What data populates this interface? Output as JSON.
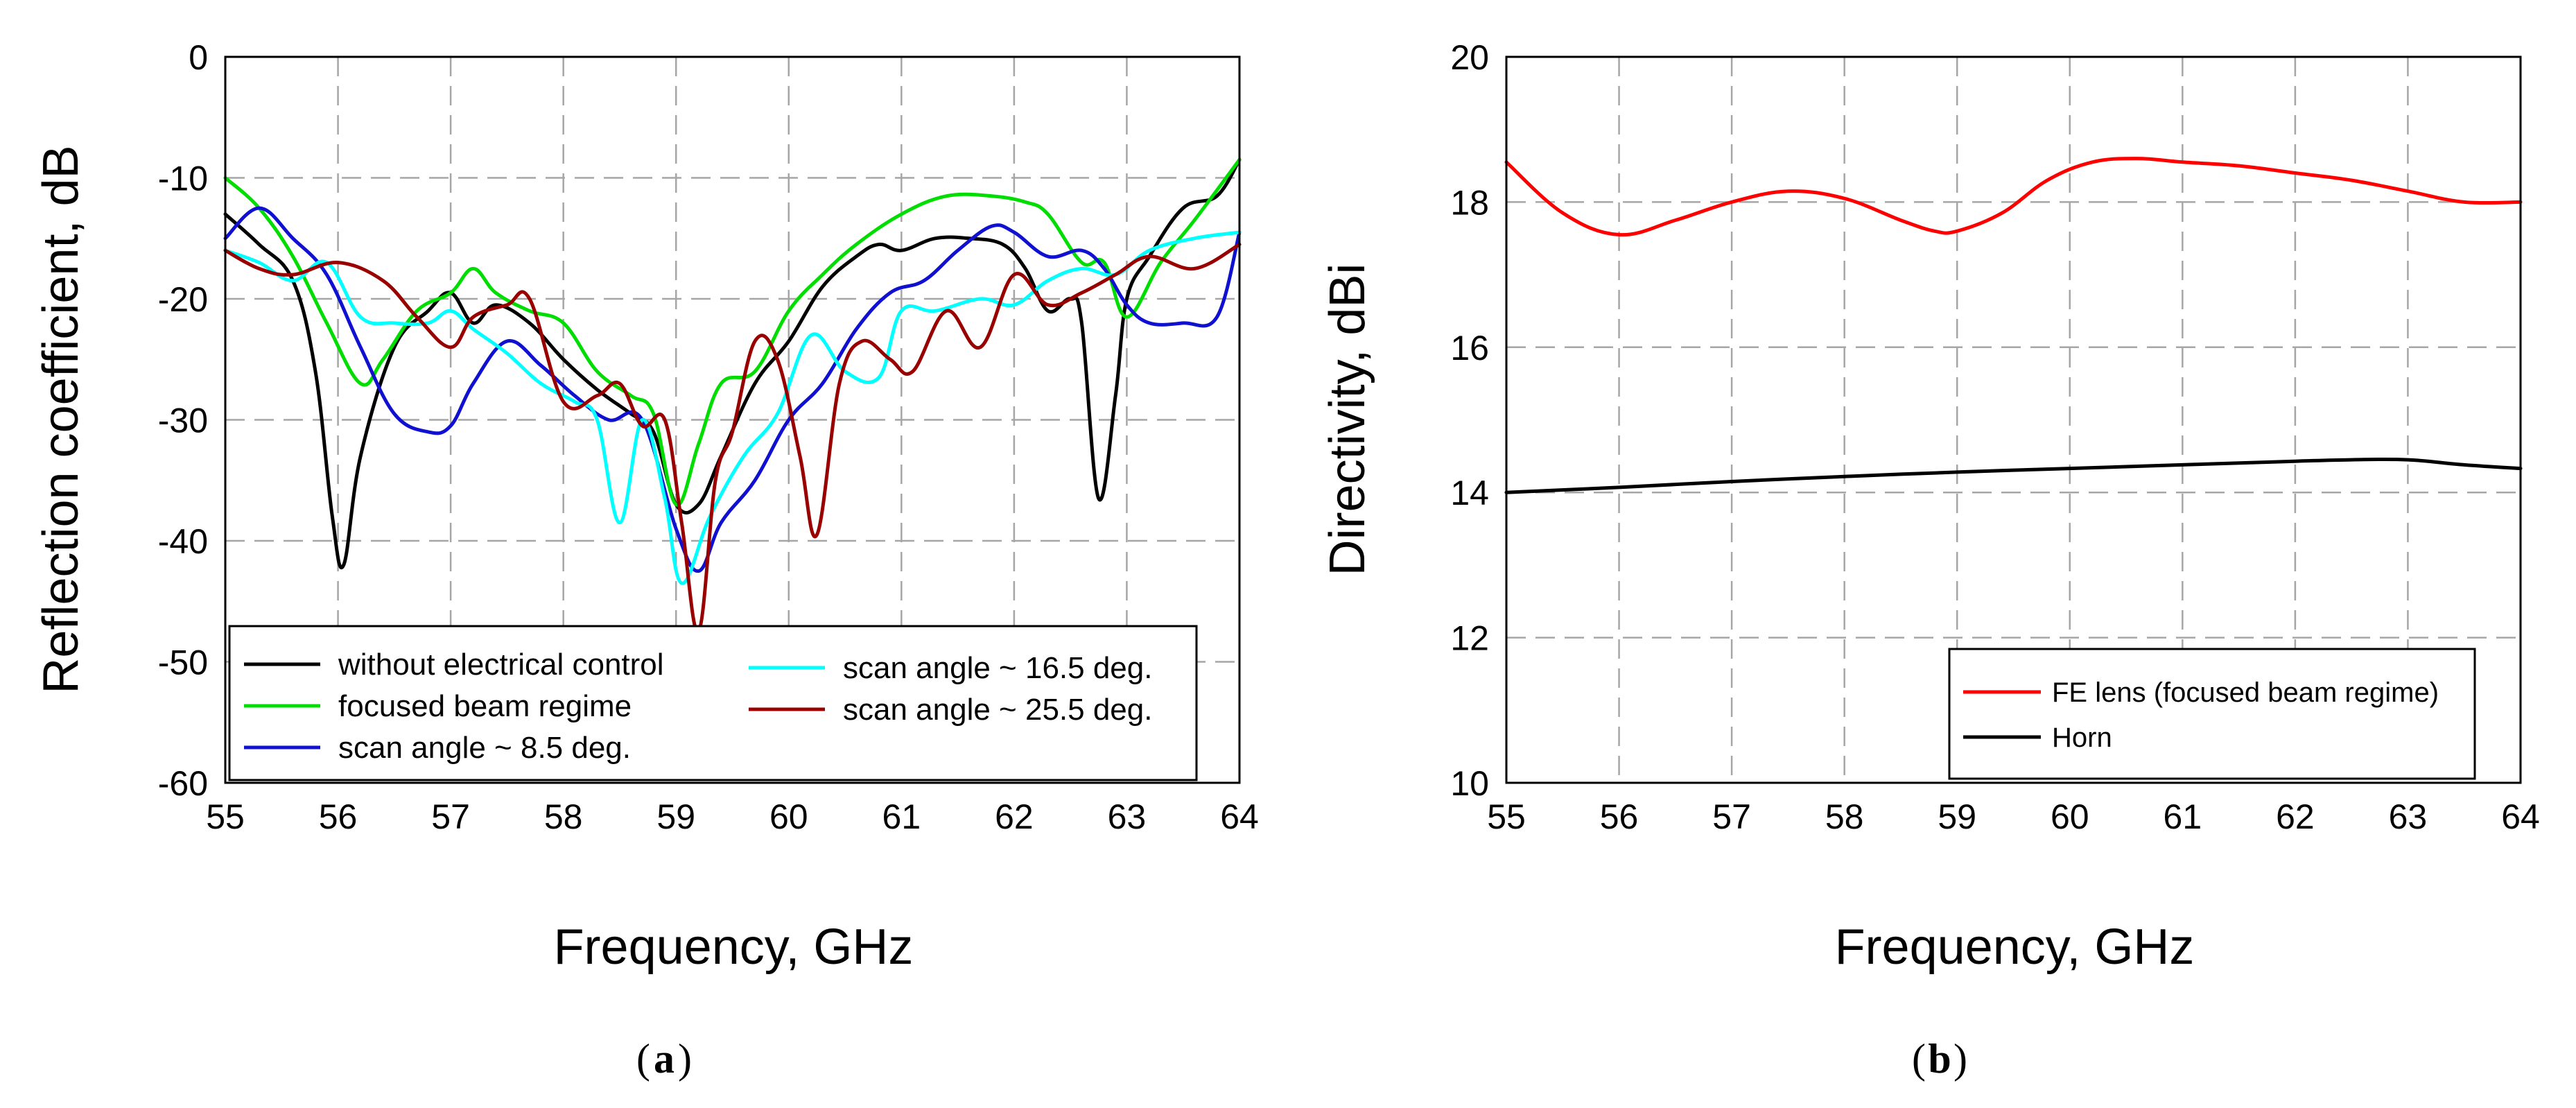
{
  "chart_data": [
    {
      "type": "line",
      "panel_label": "(a)",
      "panel_letter": "a",
      "xlabel": "Frequency, GHz",
      "ylabel": "Reflection coefficient, dB",
      "xlim": [
        55,
        64
      ],
      "ylim": [
        -60,
        0
      ],
      "x_ticks": [
        "55",
        "56",
        "57",
        "58",
        "59",
        "60",
        "61",
        "62",
        "63",
        "64"
      ],
      "y_ticks": [
        "0",
        "-10",
        "-20",
        "-30",
        "-40",
        "-50",
        "-60"
      ],
      "grid": true,
      "legend_position": "bottom-left",
      "series": [
        {
          "name": "without electrical control",
          "color": "#000000",
          "x": [
            55,
            55.3,
            55.6,
            55.8,
            55.95,
            56.05,
            56.2,
            56.5,
            56.8,
            57.0,
            57.2,
            57.4,
            57.7,
            58.0,
            58.3,
            58.6,
            58.8,
            59.0,
            59.2,
            59.4,
            59.7,
            60.0,
            60.3,
            60.6,
            60.8,
            61.0,
            61.3,
            61.6,
            61.9,
            62.1,
            62.3,
            62.5,
            62.6,
            62.75,
            62.9,
            63.0,
            63.2,
            63.5,
            63.8,
            64.0
          ],
          "values": [
            -13,
            -15.5,
            -18.5,
            -26,
            -38,
            -42,
            -33,
            -24,
            -21,
            -19.5,
            -22,
            -20.5,
            -22,
            -25,
            -27.5,
            -29.5,
            -31,
            -37,
            -37,
            -33,
            -27,
            -23.5,
            -19,
            -16.5,
            -15.5,
            -16,
            -15,
            -15,
            -15.5,
            -17.5,
            -21,
            -20,
            -22,
            -36.5,
            -28,
            -20,
            -16.5,
            -12.5,
            -11.5,
            -8.5
          ]
        },
        {
          "name": "focused beam regime",
          "color": "#00dd00",
          "x": [
            55,
            55.3,
            55.6,
            55.9,
            56.2,
            56.4,
            56.7,
            57.0,
            57.2,
            57.4,
            57.7,
            58.0,
            58.3,
            58.6,
            58.8,
            59.0,
            59.2,
            59.4,
            59.7,
            60.0,
            60.3,
            60.6,
            61.0,
            61.4,
            61.8,
            62.1,
            62.3,
            62.6,
            62.8,
            63.0,
            63.3,
            63.6,
            64.0
          ],
          "values": [
            -10,
            -12.5,
            -16.5,
            -22,
            -27,
            -25,
            -21,
            -19.5,
            -17.5,
            -19.5,
            -21,
            -22,
            -26,
            -28,
            -29.5,
            -37,
            -32,
            -27,
            -26,
            -21,
            -18,
            -15.5,
            -13,
            -11.5,
            -11.5,
            -12,
            -13,
            -17,
            -17,
            -21.5,
            -17,
            -13.5,
            -8.5
          ]
        },
        {
          "name": "scan angle ~ 8.5 deg.",
          "color": "#1010d0",
          "x": [
            55,
            55.3,
            55.6,
            55.9,
            56.2,
            56.5,
            56.8,
            57.0,
            57.2,
            57.5,
            57.8,
            58.1,
            58.4,
            58.7,
            59.0,
            59.2,
            59.4,
            59.7,
            60.0,
            60.3,
            60.6,
            60.9,
            61.2,
            61.5,
            61.8,
            62.0,
            62.3,
            62.6,
            62.8,
            63.0,
            63.2,
            63.5,
            63.8,
            64.0
          ],
          "values": [
            -15,
            -12.5,
            -15,
            -18,
            -24,
            -29.5,
            -31,
            -30.5,
            -27,
            -23.5,
            -25.5,
            -28,
            -30,
            -30,
            -39,
            -42.5,
            -38.5,
            -35,
            -30,
            -27,
            -22.5,
            -19.5,
            -18.5,
            -16,
            -14,
            -14.5,
            -16.5,
            -16,
            -17.5,
            -20.5,
            -22,
            -22,
            -21.5,
            -14.5
          ]
        },
        {
          "name": "scan angle ~ 16.5 deg.",
          "color": "#00ffff",
          "x": [
            55,
            55.3,
            55.6,
            55.9,
            56.2,
            56.5,
            56.8,
            57.0,
            57.2,
            57.5,
            57.8,
            58.1,
            58.3,
            58.5,
            58.7,
            58.9,
            59.05,
            59.3,
            59.6,
            59.9,
            60.2,
            60.5,
            60.8,
            61.0,
            61.3,
            61.7,
            62.0,
            62.3,
            62.6,
            62.9,
            63.2,
            63.6,
            64.0
          ],
          "values": [
            -16,
            -17,
            -18.5,
            -17,
            -21.5,
            -22,
            -22,
            -21,
            -22.5,
            -24.5,
            -27,
            -28.5,
            -30,
            -38.5,
            -30,
            -36.5,
            -43.5,
            -38,
            -33,
            -29.5,
            -23,
            -26,
            -26.5,
            -21,
            -21,
            -20,
            -20.5,
            -18.5,
            -17.5,
            -18,
            -16,
            -15,
            -14.5
          ]
        },
        {
          "name": "scan angle ~ 25.5 deg.",
          "color": "#990000",
          "x": [
            55,
            55.3,
            55.6,
            56.0,
            56.4,
            56.7,
            57.0,
            57.2,
            57.5,
            57.7,
            58.0,
            58.3,
            58.5,
            58.7,
            58.9,
            59.05,
            59.2,
            59.35,
            59.5,
            59.7,
            59.9,
            60.1,
            60.25,
            60.45,
            60.65,
            60.9,
            61.1,
            61.4,
            61.7,
            62.0,
            62.3,
            62.6,
            62.9,
            63.2,
            63.6,
            64.0
          ],
          "values": [
            -16,
            -17.5,
            -18,
            -17,
            -18.5,
            -21.5,
            -24,
            -21.5,
            -20.5,
            -20,
            -28.5,
            -28,
            -27,
            -30.5,
            -30,
            -38.5,
            -47.5,
            -35,
            -31,
            -23.5,
            -25,
            -33,
            -39.5,
            -27,
            -23.5,
            -25,
            -26,
            -21,
            -24,
            -18,
            -20.5,
            -19.5,
            -18,
            -16.5,
            -17.5,
            -15.5
          ]
        }
      ]
    },
    {
      "type": "line",
      "panel_label": "(b)",
      "panel_letter": "b",
      "xlabel": "Frequency, GHz",
      "ylabel": "Directivity, dBi",
      "xlim": [
        55,
        64
      ],
      "ylim": [
        10,
        20
      ],
      "x_ticks": [
        "55",
        "56",
        "57",
        "58",
        "59",
        "60",
        "61",
        "62",
        "63",
        "64"
      ],
      "y_ticks": [
        "20",
        "18",
        "16",
        "14",
        "12",
        "10"
      ],
      "grid": true,
      "legend_position": "bottom-right",
      "series": [
        {
          "name": "FE lens (focused beam regime)",
          "color": "#ff0000",
          "x": [
            55,
            55.5,
            56.0,
            56.5,
            57.0,
            57.5,
            58.0,
            58.5,
            58.8,
            59.0,
            59.4,
            59.8,
            60.2,
            60.6,
            61.0,
            61.5,
            62.0,
            62.5,
            63.0,
            63.5,
            64.0
          ],
          "values": [
            18.55,
            17.85,
            17.55,
            17.75,
            18.0,
            18.15,
            18.05,
            17.75,
            17.6,
            17.6,
            17.85,
            18.3,
            18.55,
            18.6,
            18.55,
            18.5,
            18.4,
            18.3,
            18.15,
            18.0,
            18.0
          ]
        },
        {
          "name": "Horn",
          "color": "#000000",
          "x": [
            55,
            56,
            57,
            58,
            59,
            60,
            61,
            62,
            62.5,
            63.0,
            63.5,
            64.0
          ],
          "values": [
            14.0,
            14.07,
            14.15,
            14.22,
            14.28,
            14.33,
            14.38,
            14.43,
            14.45,
            14.45,
            14.38,
            14.33
          ]
        }
      ]
    }
  ]
}
